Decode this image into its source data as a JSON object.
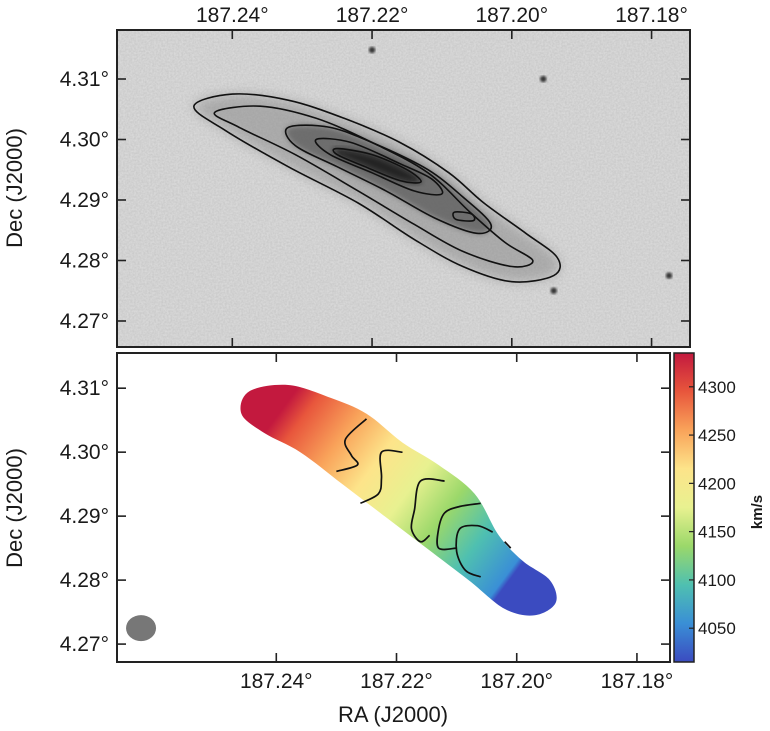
{
  "chart_data": [
    {
      "type": "heatmap",
      "panel": "top",
      "description_kind": "greyscale optical image with contours",
      "xlabel": "",
      "ylabel": "Dec (J2000)",
      "xticks": [
        "187.24°",
        "187.22°",
        "187.20°",
        "187.18°"
      ],
      "xtick_values": [
        187.24,
        187.22,
        187.2,
        187.18
      ],
      "yticks": [
        "4.31°",
        "4.30°",
        "4.29°",
        "4.28°",
        "4.27°"
      ],
      "ytick_values": [
        4.31,
        4.3,
        4.29,
        4.28,
        4.27
      ],
      "xlim": [
        187.2565,
        187.1745
      ],
      "ylim": [
        4.2657,
        4.3181
      ],
      "x_axis_position": "top",
      "contours": [
        {
          "level": 1,
          "ra_dec": [
            [
              187.2455,
              4.3055
            ],
            [
              187.24,
              4.3075
            ],
            [
              187.232,
              4.3065
            ],
            [
              187.224,
              4.3035
            ],
            [
              187.216,
              4.2995
            ],
            [
              187.209,
              4.2945
            ],
            [
              187.204,
              4.2895
            ],
            [
              187.198,
              4.2845
            ],
            [
              187.1935,
              4.2805
            ],
            [
              187.194,
              4.2775
            ],
            [
              187.2,
              4.2765
            ],
            [
              187.207,
              4.279
            ],
            [
              187.214,
              4.2835
            ],
            [
              187.222,
              4.2895
            ],
            [
              187.232,
              4.2955
            ],
            [
              187.241,
              4.3015
            ],
            [
              187.2455,
              4.3055
            ]
          ]
        },
        {
          "level": 2,
          "ra_dec": [
            [
              187.2425,
              4.3045
            ],
            [
              187.236,
              4.3055
            ],
            [
              187.228,
              4.3035
            ],
            [
              187.22,
              4.2995
            ],
            [
              187.212,
              4.2945
            ],
            [
              187.206,
              4.288
            ],
            [
              187.201,
              4.283
            ],
            [
              187.197,
              4.28
            ],
            [
              187.2,
              4.279
            ],
            [
              187.207,
              4.2815
            ],
            [
              187.214,
              4.286
            ],
            [
              187.222,
              4.2915
            ],
            [
              187.231,
              4.2975
            ],
            [
              187.239,
              4.302
            ],
            [
              187.2425,
              4.3045
            ]
          ]
        },
        {
          "level": 3,
          "ra_dec": [
            [
              187.232,
              4.302
            ],
            [
              187.226,
              4.302
            ],
            [
              187.219,
              4.299
            ],
            [
              187.212,
              4.295
            ],
            [
              187.207,
              4.2905
            ],
            [
              187.203,
              4.286
            ],
            [
              187.205,
              4.2845
            ],
            [
              187.211,
              4.287
            ],
            [
              187.218,
              4.2915
            ],
            [
              187.225,
              4.2955
            ],
            [
              187.231,
              4.299
            ],
            [
              187.232,
              4.302
            ]
          ]
        },
        {
          "level": 4,
          "ra_dec": [
            [
              187.228,
              4.3
            ],
            [
              187.223,
              4.2995
            ],
            [
              187.216,
              4.296
            ],
            [
              187.2115,
              4.2935
            ],
            [
              187.21,
              4.291
            ],
            [
              187.214,
              4.2915
            ],
            [
              187.22,
              4.2945
            ],
            [
              187.226,
              4.2975
            ],
            [
              187.228,
              4.3
            ]
          ]
        },
        {
          "level": 5,
          "ra_dec": [
            [
              187.225,
              4.2985
            ],
            [
              187.22,
              4.2975
            ],
            [
              187.215,
              4.295
            ],
            [
              187.213,
              4.293
            ],
            [
              187.216,
              4.2932
            ],
            [
              187.221,
              4.2955
            ],
            [
              187.225,
              4.2975
            ],
            [
              187.225,
              4.2985
            ]
          ]
        },
        {
          "level": 6,
          "ra_dec": [
            [
              187.2082,
              4.288
            ],
            [
              187.2058,
              4.2877
            ],
            [
              187.2055,
              4.2866
            ],
            [
              187.208,
              4.2868
            ],
            [
              187.2082,
              4.288
            ]
          ]
        }
      ],
      "point_sources": [
        {
          "ra": 187.22,
          "dec": 4.3148
        },
        {
          "ra": 187.1955,
          "dec": 4.31
        },
        {
          "ra": 187.194,
          "dec": 4.275
        },
        {
          "ra": 187.1775,
          "dec": 4.2775
        }
      ],
      "background_color": "#d9d9d9",
      "galaxy_core_color": "#1a1a1a"
    },
    {
      "type": "heatmap",
      "panel": "bottom",
      "description_kind": "velocity field with isovelocity contours",
      "xlabel": "RA (J2000)",
      "ylabel": "Dec (J2000)",
      "xticks": [
        "187.24°",
        "187.22°",
        "187.20°",
        "187.18°"
      ],
      "xtick_values": [
        187.24,
        187.22,
        187.2,
        187.18
      ],
      "yticks": [
        "4.31°",
        "4.30°",
        "4.29°",
        "4.28°",
        "4.27°"
      ],
      "ytick_values": [
        4.31,
        4.3,
        4.29,
        4.28,
        4.27
      ],
      "xlim": [
        187.2665,
        187.1745
      ],
      "ylim": [
        4.2672,
        4.3155
      ],
      "x_axis_position": "bottom",
      "velocity_gradient_axis": {
        "start": {
          "ra": 187.24,
          "dec": 4.3055,
          "v": 4315
        },
        "end": {
          "ra": 187.202,
          "dec": 4.279,
          "v": 4050
        }
      },
      "outline": [
        [
          187.2445,
          4.3095
        ],
        [
          187.238,
          4.3105
        ],
        [
          187.231,
          4.3085
        ],
        [
          187.225,
          4.306
        ],
        [
          187.219,
          4.3015
        ],
        [
          187.213,
          4.298
        ],
        [
          187.207,
          4.2935
        ],
        [
          187.203,
          4.287
        ],
        [
          187.199,
          4.283
        ],
        [
          187.1945,
          4.28
        ],
        [
          187.1935,
          4.2765
        ],
        [
          187.197,
          4.2745
        ],
        [
          187.202,
          4.2755
        ],
        [
          187.208,
          4.28
        ],
        [
          187.215,
          4.285
        ],
        [
          187.222,
          4.29
        ],
        [
          187.229,
          4.295
        ],
        [
          187.236,
          4.3
        ],
        [
          187.242,
          4.303
        ],
        [
          187.2458,
          4.306
        ],
        [
          187.2445,
          4.3095
        ]
      ],
      "isovelocity_contours": [
        {
          "ra_dec": [
            [
              187.225,
              4.3052
            ],
            [
              187.2285,
              4.302
            ],
            [
              187.2275,
              4.2995
            ],
            [
              187.2265,
              4.298
            ],
            [
              187.23,
              4.297
            ]
          ]
        },
        {
          "ra_dec": [
            [
              187.219,
              4.3
            ],
            [
              187.2225,
              4.3
            ],
            [
              187.2225,
              4.296
            ],
            [
              187.223,
              4.2935
            ],
            [
              187.226,
              4.292
            ]
          ]
        },
        {
          "ra_dec": [
            [
              187.212,
              4.2955
            ],
            [
              187.216,
              4.2955
            ],
            [
              187.217,
              4.291
            ],
            [
              187.2175,
              4.288
            ],
            [
              187.216,
              4.286
            ],
            [
              187.2145,
              4.287
            ]
          ]
        },
        {
          "ra_dec": [
            [
              187.206,
              4.292
            ],
            [
              187.2095,
              4.2915
            ],
            [
              187.212,
              4.2905
            ],
            [
              187.213,
              4.288
            ],
            [
              187.213,
              4.285
            ],
            [
              187.21,
              4.285
            ]
          ]
        },
        {
          "ra_dec": [
            [
              187.204,
              4.2875
            ],
            [
              187.2065,
              4.2885
            ],
            [
              187.2095,
              4.288
            ],
            [
              187.21,
              4.2845
            ],
            [
              187.2085,
              4.2815
            ],
            [
              187.206,
              4.2805
            ]
          ]
        },
        {
          "ra_dec": [
            [
              187.202,
              4.286
            ],
            [
              187.201,
              4.285
            ]
          ]
        }
      ],
      "beam": {
        "ra": 187.2625,
        "dec": 4.2725,
        "color": "#777777"
      },
      "colorbar": {
        "unit": "km/s",
        "ticks": [
          4050,
          4100,
          4150,
          4200,
          4250,
          4300
        ],
        "tick_labels": [
          "4050",
          "4100",
          "4150",
          "4200",
          "4250",
          "4300"
        ],
        "vmin": 4015,
        "vmax": 4335,
        "colormap": "Spectral_r",
        "colormap_stops": [
          "#3b4bc0",
          "#3a8fd6",
          "#4fc0b0",
          "#9bd86a",
          "#e8f190",
          "#fde48a",
          "#f9a35a",
          "#e8563c",
          "#c3193e"
        ]
      }
    }
  ]
}
